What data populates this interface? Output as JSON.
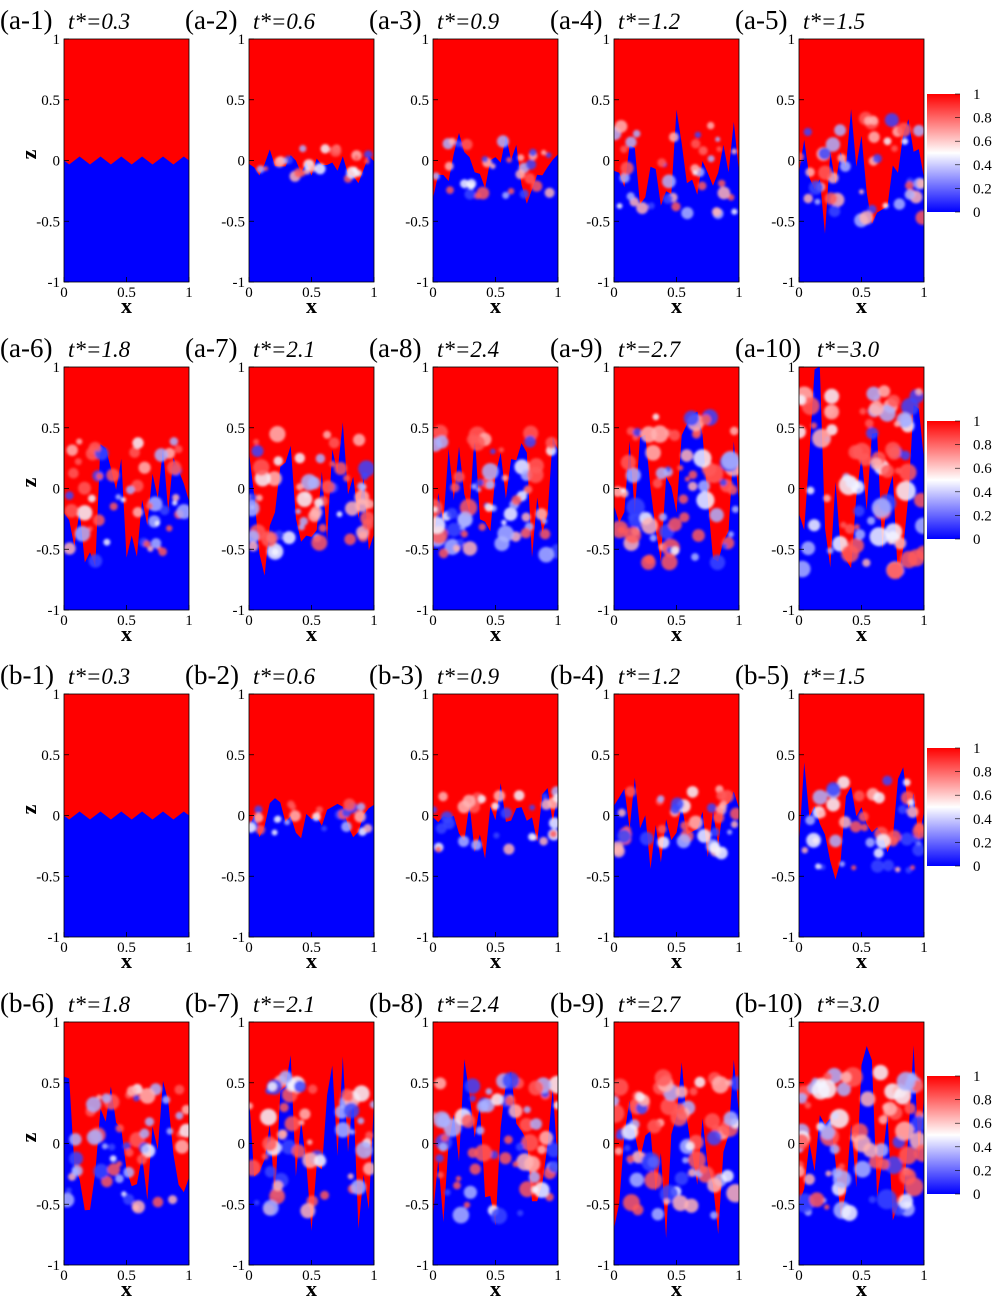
{
  "figure": {
    "x_axis_label": "x",
    "z_axis_label": "z",
    "x_ticks": [
      "0",
      "0.5",
      "1"
    ],
    "z_ticks": [
      "1",
      "0.5",
      "0",
      "-0.5",
      "-1"
    ],
    "colorbar": {
      "ticks": [
        "1",
        "0.8",
        "0.6",
        "0.4",
        "0.2",
        "0"
      ],
      "colors": {
        "low": "#0000ff",
        "mid": "#ffffff",
        "high": "#ff0000"
      }
    },
    "panels": [
      {
        "label": "(a-1)",
        "time": "t*=0.3"
      },
      {
        "label": "(a-2)",
        "time": "t*=0.6"
      },
      {
        "label": "(a-3)",
        "time": "t*=0.9"
      },
      {
        "label": "(a-4)",
        "time": "t*=1.2"
      },
      {
        "label": "(a-5)",
        "time": "t*=1.5"
      },
      {
        "label": "(a-6)",
        "time": "t*=1.8"
      },
      {
        "label": "(a-7)",
        "time": "t*=2.1"
      },
      {
        "label": "(a-8)",
        "time": "t*=2.4"
      },
      {
        "label": "(a-9)",
        "time": "t*=2.7"
      },
      {
        "label": "(a-10)",
        "time": "t*=3.0"
      },
      {
        "label": "(b-1)",
        "time": "t*=0.3"
      },
      {
        "label": "(b-2)",
        "time": "t*=0.6"
      },
      {
        "label": "(b-3)",
        "time": "t*=0.9"
      },
      {
        "label": "(b-4)",
        "time": "t*=1.2"
      },
      {
        "label": "(b-5)",
        "time": "t*=1.5"
      },
      {
        "label": "(b-6)",
        "time": "t*=1.8"
      },
      {
        "label": "(b-7)",
        "time": "t*=2.1"
      },
      {
        "label": "(b-8)",
        "time": "t*=2.4"
      },
      {
        "label": "(b-9)",
        "time": "t*=2.7"
      },
      {
        "label": "(b-10)",
        "time": "t*=3.0"
      }
    ]
  },
  "chart_data": {
    "type": "heatmap",
    "xlim": [
      0,
      1
    ],
    "zlim": [
      -1,
      1
    ],
    "colorbar_range": [
      0,
      1
    ],
    "grid": false,
    "mixing_zone_depth": {
      "description_source": "estimated lowest z reached by the upper fluid in each panel",
      "a": [
        -0.05,
        -0.15,
        -0.3,
        -0.45,
        -0.5,
        -0.6,
        -0.55,
        -0.55,
        -0.65,
        -0.7
      ],
      "b": [
        -0.05,
        -0.15,
        -0.3,
        -0.35,
        -0.45,
        -0.55,
        -0.6,
        -0.6,
        -0.6,
        -0.6
      ]
    },
    "mixing_zone_top": {
      "a": [
        0.05,
        0.1,
        0.2,
        0.3,
        0.35,
        0.4,
        0.45,
        0.5,
        0.6,
        0.8
      ],
      "b": [
        0.05,
        0.1,
        0.2,
        0.25,
        0.3,
        0.45,
        0.55,
        0.55,
        0.55,
        0.6
      ]
    }
  }
}
